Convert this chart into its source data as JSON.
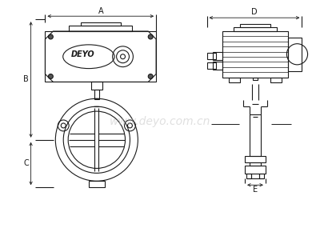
{
  "bg_color": "#ffffff",
  "line_color": "#1a1a1a",
  "figsize": [
    4.2,
    3.0
  ],
  "dpi": 100,
  "labels": [
    "A",
    "B",
    "C",
    "D",
    "E"
  ],
  "watermark": "www.deyo.com.cn"
}
